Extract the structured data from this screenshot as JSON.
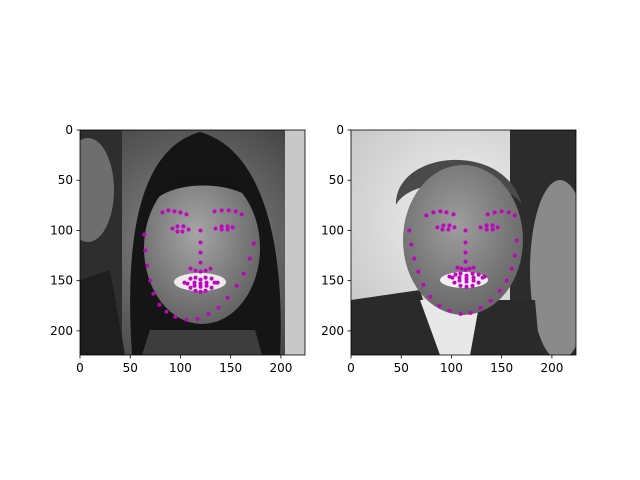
{
  "chart_data": [
    {
      "type": "scatter",
      "title": "",
      "xlabel": "",
      "ylabel": "",
      "xlim": [
        0,
        224
      ],
      "ylim": [
        224,
        0
      ],
      "xticks": [
        0,
        50,
        100,
        150,
        200
      ],
      "yticks": [
        0,
        50,
        100,
        150,
        200
      ],
      "image": "grayscale-portrait-face",
      "marker_color": "#bf00bf",
      "series": [
        {
          "x": [
            64,
            65,
            67,
            70,
            73,
            79,
            86,
            95,
            106,
            117,
            128,
            138,
            147,
            156,
            163,
            169,
            173,
            82,
            88,
            94,
            100,
            106,
            134,
            141,
            148,
            155,
            161,
            120,
            120,
            120,
            120,
            110,
            115,
            120,
            125,
            130,
            92,
            97,
            103,
            108,
            102,
            97,
            135,
            141,
            147,
            152,
            147,
            141,
            104,
            110,
            115,
            120,
            125,
            131,
            137,
            131,
            125,
            120,
            115,
            110,
            107,
            114,
            120,
            126,
            134,
            126,
            120,
            114
          ],
          "y": [
            104,
            120,
            135,
            150,
            163,
            174,
            181,
            186,
            189,
            188,
            183,
            177,
            167,
            155,
            143,
            128,
            113,
            82,
            80,
            81,
            82,
            84,
            81,
            80,
            80,
            81,
            84,
            100,
            112,
            122,
            132,
            138,
            140,
            141,
            140,
            138,
            98,
            96,
            96,
            99,
            101,
            101,
            98,
            96,
            96,
            97,
            99,
            99,
            152,
            148,
            147,
            149,
            147,
            148,
            152,
            157,
            160,
            161,
            160,
            157,
            153,
            152,
            153,
            152,
            152,
            155,
            156,
            155
          ]
        }
      ]
    },
    {
      "type": "scatter",
      "title": "",
      "xlabel": "",
      "ylabel": "",
      "xlim": [
        0,
        224
      ],
      "ylim": [
        224,
        0
      ],
      "xticks": [
        0,
        50,
        100,
        150,
        200
      ],
      "yticks": [
        0,
        50,
        100,
        150,
        200
      ],
      "image": "grayscale-portrait-face",
      "marker_color": "#bf00bf",
      "series": [
        {
          "x": [
            58,
            60,
            63,
            67,
            72,
            79,
            88,
            98,
            109,
            119,
            129,
            139,
            148,
            155,
            160,
            163,
            165,
            75,
            82,
            89,
            95,
            102,
            136,
            143,
            150,
            157,
            163,
            114,
            114,
            114,
            114,
            106,
            110,
            114,
            118,
            122,
            86,
            92,
            98,
            103,
            97,
            91,
            129,
            135,
            141,
            146,
            141,
            135,
            98,
            104,
            109,
            115,
            121,
            127,
            133,
            127,
            121,
            115,
            109,
            103,
            101,
            108,
            115,
            122,
            131,
            122,
            115,
            108
          ],
          "y": [
            100,
            114,
            128,
            141,
            154,
            166,
            175,
            180,
            183,
            182,
            177,
            170,
            160,
            150,
            138,
            125,
            110,
            85,
            82,
            81,
            82,
            84,
            84,
            82,
            81,
            82,
            85,
            100,
            112,
            122,
            131,
            137,
            138,
            139,
            138,
            137,
            97,
            95,
            95,
            97,
            99,
            99,
            97,
            95,
            95,
            97,
            99,
            99,
            146,
            144,
            143,
            145,
            143,
            144,
            146,
            152,
            155,
            156,
            155,
            152,
            147,
            147,
            148,
            147,
            147,
            150,
            151,
            150
          ]
        }
      ]
    }
  ]
}
